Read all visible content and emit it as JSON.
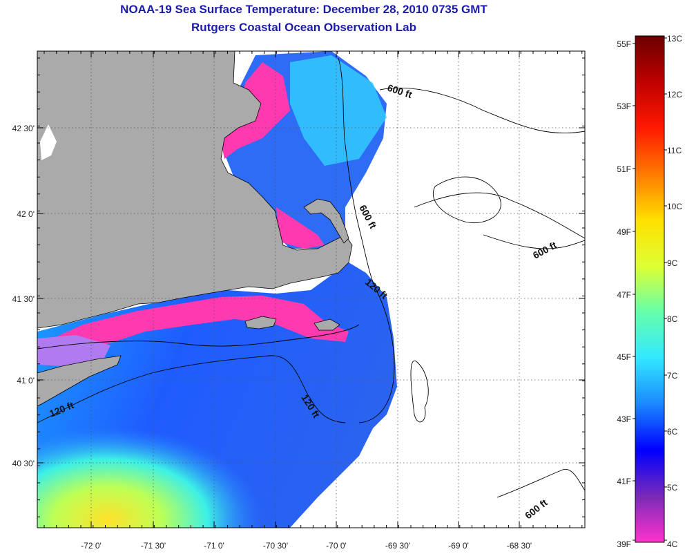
{
  "title": "NOAA-19 Sea Surface Temperature:  December 28, 2010 0735 GMT",
  "subtitle": "Rutgers Coastal Ocean Observation Lab",
  "map": {
    "lon_ticks": [
      "-72 0'",
      "-71 30'",
      "-71 0'",
      "-70 30'",
      "-70 0'",
      "-69 30'",
      "-69 0'",
      "-68 30'"
    ],
    "lat_ticks": [
      "42 30'",
      "42 0'",
      "41 30'",
      "41 0'",
      "40 30'"
    ],
    "contour_labels": [
      "600 ft",
      "600 ft",
      "600 ft",
      "600 ft",
      "120 ft",
      "120 ft",
      "120 ft"
    ],
    "colors": {
      "land": "#aaaaaa",
      "cloud": "#ffffff",
      "coast": "#000000"
    }
  },
  "colorbar": {
    "fahrenheit": [
      "55F",
      "53F",
      "51F",
      "49F",
      "47F",
      "45F",
      "43F",
      "41F",
      "39F"
    ],
    "celsius": [
      "13C",
      "12C",
      "11C",
      "10C",
      "9C",
      "8C",
      "7C",
      "6C",
      "5C",
      "4C"
    ],
    "gradient": [
      "#ff33cc",
      "#7a2ab8",
      "#0000ff",
      "#1a88ff",
      "#33e8ff",
      "#66ffaa",
      "#ddff33",
      "#ffe000",
      "#ff7a00",
      "#ff1a00",
      "#c00000",
      "#6b0000"
    ]
  }
}
